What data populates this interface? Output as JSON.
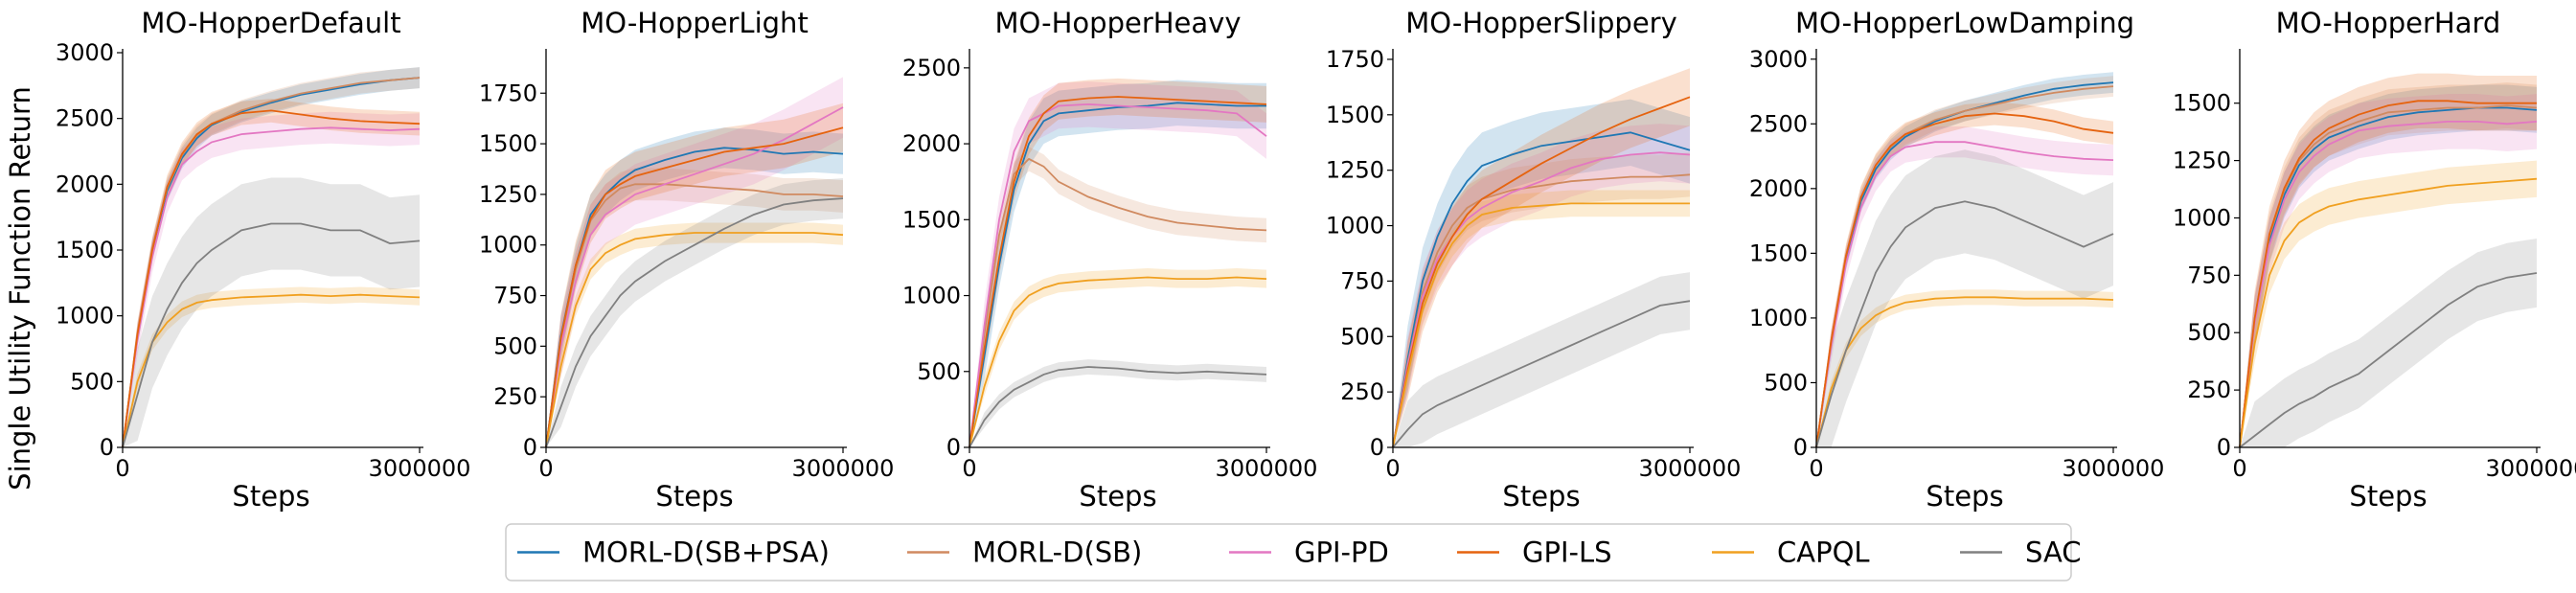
{
  "figure": {
    "ylabel": "Single Utility Function Return",
    "xlabel": "Steps",
    "legend_position": "bottom-center"
  },
  "series_styles": [
    {
      "name": "MORL-D(SB+PSA)",
      "color": "#1f77b4"
    },
    {
      "name": "MORL-D(SB)",
      "color": "#d08a60"
    },
    {
      "name": "GPI-PD",
      "color": "#e377c2"
    },
    {
      "name": "GPI-LS",
      "color": "#e5630f"
    },
    {
      "name": "CAPQL",
      "color": "#f0a020"
    },
    {
      "name": "SAC",
      "color": "#808080"
    }
  ],
  "chart_data": [
    {
      "type": "line",
      "title": "MO-HopperDefault",
      "xlabel": "Steps",
      "ylabel": "Single Utility Function Return",
      "xlim": [
        0,
        3000000
      ],
      "ylim": [
        0,
        3000
      ],
      "yticks": [
        0,
        500,
        1000,
        1500,
        2000,
        2500,
        3000
      ],
      "xticks": [
        0,
        3000000
      ],
      "x": [
        0,
        150000,
        300000,
        450000,
        600000,
        750000,
        900000,
        1200000,
        1500000,
        1800000,
        2100000,
        2400000,
        2700000,
        3000000
      ],
      "series": [
        {
          "name": "MORL-D(SB+PSA)",
          "values": [
            0,
            850,
            1500,
            1950,
            2200,
            2350,
            2450,
            2550,
            2620,
            2680,
            2720,
            2760,
            2790,
            2810
          ],
          "band": 80
        },
        {
          "name": "MORL-D(SB)",
          "values": [
            0,
            870,
            1520,
            1970,
            2220,
            2370,
            2460,
            2560,
            2630,
            2690,
            2730,
            2770,
            2790,
            2810
          ],
          "band": 80
        },
        {
          "name": "GPI-PD",
          "values": [
            0,
            820,
            1450,
            1900,
            2150,
            2250,
            2320,
            2380,
            2400,
            2420,
            2430,
            2420,
            2410,
            2420
          ],
          "band": 120
        },
        {
          "name": "GPI-LS",
          "values": [
            0,
            860,
            1500,
            1980,
            2230,
            2380,
            2460,
            2540,
            2560,
            2530,
            2500,
            2480,
            2470,
            2460
          ],
          "band": 90
        },
        {
          "name": "CAPQL",
          "values": [
            0,
            500,
            800,
            950,
            1050,
            1100,
            1120,
            1140,
            1150,
            1160,
            1150,
            1160,
            1150,
            1140
          ],
          "band": 60
        },
        {
          "name": "SAC",
          "values": [
            0,
            400,
            800,
            1050,
            1250,
            1400,
            1500,
            1650,
            1700,
            1700,
            1650,
            1650,
            1550,
            1570
          ],
          "band": 350
        }
      ]
    },
    {
      "type": "line",
      "title": "MO-HopperLight",
      "xlabel": "Steps",
      "ylabel": "",
      "xlim": [
        0,
        3000000
      ],
      "ylim": [
        0,
        1950
      ],
      "yticks": [
        0,
        250,
        500,
        750,
        1000,
        1250,
        1500,
        1750
      ],
      "xticks": [
        0,
        3000000
      ],
      "x": [
        0,
        150000,
        300000,
        450000,
        600000,
        750000,
        900000,
        1200000,
        1500000,
        1800000,
        2100000,
        2400000,
        2700000,
        3000000
      ],
      "series": [
        {
          "name": "MORL-D(SB+PSA)",
          "values": [
            0,
            550,
            900,
            1150,
            1250,
            1320,
            1370,
            1420,
            1460,
            1480,
            1470,
            1450,
            1460,
            1450
          ],
          "band": 100
        },
        {
          "name": "MORL-D(SB)",
          "values": [
            0,
            530,
            880,
            1120,
            1220,
            1280,
            1300,
            1300,
            1290,
            1280,
            1270,
            1250,
            1250,
            1240
          ],
          "band": 80
        },
        {
          "name": "GPI-PD",
          "values": [
            0,
            500,
            820,
            1050,
            1150,
            1200,
            1250,
            1300,
            1350,
            1400,
            1450,
            1520,
            1600,
            1680
          ],
          "band": 150
        },
        {
          "name": "GPI-LS",
          "values": [
            0,
            540,
            900,
            1130,
            1250,
            1300,
            1340,
            1380,
            1420,
            1460,
            1480,
            1500,
            1540,
            1580
          ],
          "band": 120
        },
        {
          "name": "CAPQL",
          "values": [
            0,
            400,
            700,
            880,
            960,
            1000,
            1030,
            1050,
            1060,
            1060,
            1060,
            1060,
            1060,
            1050
          ],
          "band": 50
        },
        {
          "name": "SAC",
          "values": [
            0,
            200,
            400,
            550,
            650,
            750,
            820,
            920,
            1000,
            1080,
            1150,
            1200,
            1220,
            1230
          ],
          "band": 100
        }
      ]
    },
    {
      "type": "line",
      "title": "MO-HopperHeavy",
      "xlabel": "Steps",
      "ylabel": "",
      "xlim": [
        0,
        3000000
      ],
      "ylim": [
        0,
        2600
      ],
      "yticks": [
        0,
        500,
        1000,
        1500,
        2000,
        2500
      ],
      "xticks": [
        0,
        3000000
      ],
      "x": [
        0,
        150000,
        300000,
        450000,
        600000,
        750000,
        900000,
        1200000,
        1500000,
        1800000,
        2100000,
        2400000,
        2700000,
        3000000
      ],
      "series": [
        {
          "name": "MORL-D(SB+PSA)",
          "values": [
            0,
            600,
            1200,
            1700,
            2000,
            2150,
            2200,
            2220,
            2240,
            2250,
            2270,
            2260,
            2250,
            2250
          ],
          "band": 150
        },
        {
          "name": "MORL-D(SB)",
          "values": [
            0,
            750,
            1400,
            1800,
            1900,
            1850,
            1750,
            1650,
            1580,
            1520,
            1480,
            1460,
            1440,
            1430
          ],
          "band": 80
        },
        {
          "name": "GPI-PD",
          "values": [
            0,
            800,
            1500,
            1950,
            2150,
            2200,
            2250,
            2260,
            2250,
            2240,
            2230,
            2220,
            2200,
            2050
          ],
          "band": 150
        },
        {
          "name": "GPI-LS",
          "values": [
            0,
            650,
            1250,
            1750,
            2050,
            2200,
            2280,
            2300,
            2310,
            2300,
            2290,
            2280,
            2270,
            2260
          ],
          "band": 120
        },
        {
          "name": "CAPQL",
          "values": [
            0,
            400,
            700,
            900,
            1000,
            1050,
            1080,
            1100,
            1110,
            1120,
            1110,
            1110,
            1120,
            1110
          ],
          "band": 60
        },
        {
          "name": "SAC",
          "values": [
            0,
            180,
            300,
            380,
            430,
            480,
            510,
            530,
            520,
            500,
            490,
            500,
            490,
            480
          ],
          "band": 50
        }
      ]
    },
    {
      "type": "line",
      "title": "MO-HopperSlippery",
      "xlabel": "Steps",
      "ylabel": "",
      "xlim": [
        0,
        3000000
      ],
      "ylim": [
        0,
        1780
      ],
      "yticks": [
        0,
        250,
        500,
        750,
        1000,
        1250,
        1500,
        1750
      ],
      "xticks": [
        0,
        3000000
      ],
      "x": [
        0,
        150000,
        300000,
        450000,
        600000,
        750000,
        900000,
        1200000,
        1500000,
        1800000,
        2100000,
        2400000,
        2700000,
        3000000
      ],
      "series": [
        {
          "name": "MORL-D(SB+PSA)",
          "values": [
            0,
            400,
            750,
            950,
            1100,
            1200,
            1270,
            1320,
            1360,
            1380,
            1400,
            1420,
            1380,
            1340
          ],
          "band": 150
        },
        {
          "name": "MORL-D(SB)",
          "values": [
            0,
            380,
            700,
            880,
            1000,
            1080,
            1120,
            1160,
            1180,
            1200,
            1210,
            1220,
            1220,
            1230
          ],
          "band": 100
        },
        {
          "name": "GPI-PD",
          "values": [
            0,
            370,
            680,
            850,
            950,
            1030,
            1080,
            1150,
            1200,
            1260,
            1300,
            1320,
            1330,
            1320
          ],
          "band": 130
        },
        {
          "name": "GPI-LS",
          "values": [
            0,
            350,
            650,
            830,
            950,
            1050,
            1120,
            1200,
            1280,
            1350,
            1420,
            1480,
            1530,
            1580
          ],
          "band": 130
        },
        {
          "name": "CAPQL",
          "values": [
            0,
            330,
            620,
            800,
            920,
            1000,
            1050,
            1080,
            1090,
            1100,
            1100,
            1100,
            1100,
            1100
          ],
          "band": 60
        },
        {
          "name": "SAC",
          "values": [
            0,
            80,
            150,
            190,
            220,
            250,
            280,
            340,
            400,
            460,
            520,
            580,
            640,
            660
          ],
          "band": 130
        }
      ]
    },
    {
      "type": "line",
      "title": "MO-HopperLowDamping",
      "xlabel": "Steps",
      "ylabel": "",
      "xlim": [
        0,
        3000000
      ],
      "ylim": [
        0,
        3050
      ],
      "yticks": [
        0,
        500,
        1000,
        1500,
        2000,
        2500,
        3000
      ],
      "xticks": [
        0,
        3000000
      ],
      "x": [
        0,
        150000,
        300000,
        450000,
        600000,
        750000,
        900000,
        1200000,
        1500000,
        1800000,
        2100000,
        2400000,
        2700000,
        3000000
      ],
      "series": [
        {
          "name": "MORL-D(SB+PSA)",
          "values": [
            0,
            800,
            1450,
            1900,
            2150,
            2300,
            2400,
            2520,
            2600,
            2660,
            2720,
            2770,
            2800,
            2820
          ],
          "band": 80
        },
        {
          "name": "MORL-D(SB)",
          "values": [
            0,
            820,
            1480,
            1930,
            2180,
            2320,
            2420,
            2530,
            2600,
            2650,
            2700,
            2740,
            2770,
            2790
          ],
          "band": 80
        },
        {
          "name": "GPI-PD",
          "values": [
            0,
            780,
            1420,
            1850,
            2100,
            2250,
            2320,
            2360,
            2360,
            2320,
            2280,
            2250,
            2230,
            2220
          ],
          "band": 120
        },
        {
          "name": "GPI-LS",
          "values": [
            0,
            820,
            1480,
            1930,
            2180,
            2330,
            2420,
            2500,
            2560,
            2580,
            2560,
            2520,
            2460,
            2430
          ],
          "band": 90
        },
        {
          "name": "CAPQL",
          "values": [
            0,
            450,
            750,
            920,
            1020,
            1080,
            1120,
            1150,
            1160,
            1160,
            1150,
            1150,
            1150,
            1140
          ],
          "band": 60
        },
        {
          "name": "SAC",
          "values": [
            0,
            400,
            750,
            1050,
            1350,
            1550,
            1700,
            1850,
            1900,
            1850,
            1750,
            1650,
            1550,
            1650
          ],
          "band": 400
        }
      ]
    },
    {
      "type": "line",
      "title": "MO-HopperHard",
      "xlabel": "Steps",
      "ylabel": "",
      "xlim": [
        0,
        3000000
      ],
      "ylim": [
        0,
        1720
      ],
      "yticks": [
        0,
        250,
        500,
        750,
        1000,
        1250,
        1500
      ],
      "xticks": [
        0,
        3000000
      ],
      "x": [
        0,
        150000,
        300000,
        450000,
        600000,
        750000,
        900000,
        1200000,
        1500000,
        1800000,
        2100000,
        2400000,
        2700000,
        3000000
      ],
      "series": [
        {
          "name": "MORL-D(SB+PSA)",
          "values": [
            0,
            550,
            900,
            1100,
            1230,
            1300,
            1350,
            1400,
            1440,
            1460,
            1470,
            1480,
            1480,
            1470
          ],
          "band": 100
        },
        {
          "name": "MORL-D(SB)",
          "values": [
            0,
            560,
            920,
            1120,
            1250,
            1320,
            1370,
            1420,
            1460,
            1470,
            1480,
            1480,
            1490,
            1480
          ],
          "band": 100
        },
        {
          "name": "GPI-PD",
          "values": [
            0,
            540,
            880,
            1080,
            1200,
            1270,
            1320,
            1380,
            1400,
            1410,
            1420,
            1420,
            1410,
            1420
          ],
          "band": 120
        },
        {
          "name": "GPI-LS",
          "values": [
            0,
            560,
            930,
            1130,
            1260,
            1340,
            1390,
            1450,
            1490,
            1510,
            1510,
            1500,
            1500,
            1500
          ],
          "band": 120
        },
        {
          "name": "CAPQL",
          "values": [
            0,
            450,
            750,
            900,
            980,
            1020,
            1050,
            1080,
            1100,
            1120,
            1140,
            1150,
            1160,
            1170
          ],
          "band": 80
        },
        {
          "name": "SAC",
          "values": [
            0,
            50,
            100,
            150,
            190,
            220,
            260,
            320,
            420,
            520,
            620,
            700,
            740,
            760
          ],
          "band": 150
        }
      ]
    }
  ]
}
